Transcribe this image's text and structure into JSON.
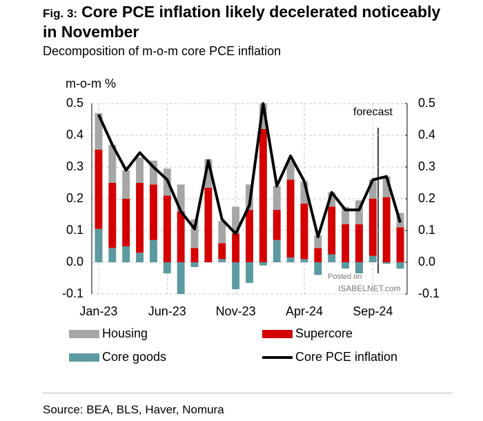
{
  "chart_data": {
    "type": "bar",
    "fig_label": "Fig. 3:",
    "title": "Core PCE inflation likely decelerated noticeably in November",
    "subtitle": "Decomposition of m-o-m core PCE inflation",
    "y_axis_label": "m-o-m %",
    "annotation": "forecast",
    "watermark_top": "Posted on",
    "watermark": "ISABELNET.com",
    "source": "Source: BEA, BLS, Haver, Nomura",
    "categories": [
      "Jan-23",
      null,
      null,
      null,
      null,
      "Jun-23",
      null,
      null,
      null,
      null,
      "Nov-23",
      null,
      null,
      null,
      null,
      "Apr-24",
      null,
      null,
      null,
      null,
      "Sep-24",
      null,
      null
    ],
    "series": [
      {
        "name": "Core goods",
        "color": "#5b9aa0",
        "values": [
          0.105,
          0.045,
          0.05,
          0.03,
          0.07,
          -0.035,
          -0.1,
          -0.015,
          0.0,
          0.01,
          -0.085,
          -0.065,
          -0.01,
          0.07,
          0.015,
          0.01,
          -0.04,
          0.025,
          -0.02,
          -0.035,
          0.02,
          -0.005,
          -0.02
        ]
      },
      {
        "name": "Supercore",
        "color": "#d40000",
        "values": [
          0.25,
          0.205,
          0.15,
          0.22,
          0.175,
          0.21,
          0.16,
          0.045,
          0.235,
          0.05,
          0.09,
          0.165,
          0.42,
          0.095,
          0.245,
          0.175,
          0.045,
          0.15,
          0.12,
          0.12,
          0.18,
          0.205,
          0.11
        ]
      },
      {
        "name": "Housing",
        "color": "#a6a6a6",
        "values": [
          0.115,
          0.12,
          0.09,
          0.08,
          0.075,
          0.085,
          0.085,
          0.09,
          0.09,
          0.07,
          0.085,
          0.08,
          0.08,
          0.075,
          0.06,
          0.07,
          0.04,
          0.045,
          0.055,
          0.075,
          0.06,
          0.065,
          0.045
        ]
      }
    ],
    "line": {
      "name": "Core PCE inflation",
      "color": "#000000",
      "values": [
        0.465,
        0.37,
        0.29,
        0.345,
        0.3,
        0.26,
        0.16,
        0.105,
        0.32,
        0.135,
        0.09,
        0.18,
        0.5,
        0.24,
        0.335,
        0.255,
        0.08,
        0.22,
        0.165,
        0.165,
        0.26,
        0.27,
        0.125
      ]
    },
    "ylim": [
      -0.1,
      0.5
    ],
    "yticks": [
      {
        "value": -0.1,
        "label": "-0.1"
      },
      {
        "value": 0,
        "label": "0.0"
      },
      0.1,
      0.2,
      0.3,
      0.4,
      0.5
    ],
    "y2lim": [
      -0.1,
      0.5
    ],
    "y2ticks": [
      {
        "value": -0.1,
        "label": "-0.1"
      },
      {
        "value": 0,
        "label": "0.0"
      },
      0.1,
      0.2,
      0.3,
      0.4,
      0.5
    ],
    "grid": true
  }
}
